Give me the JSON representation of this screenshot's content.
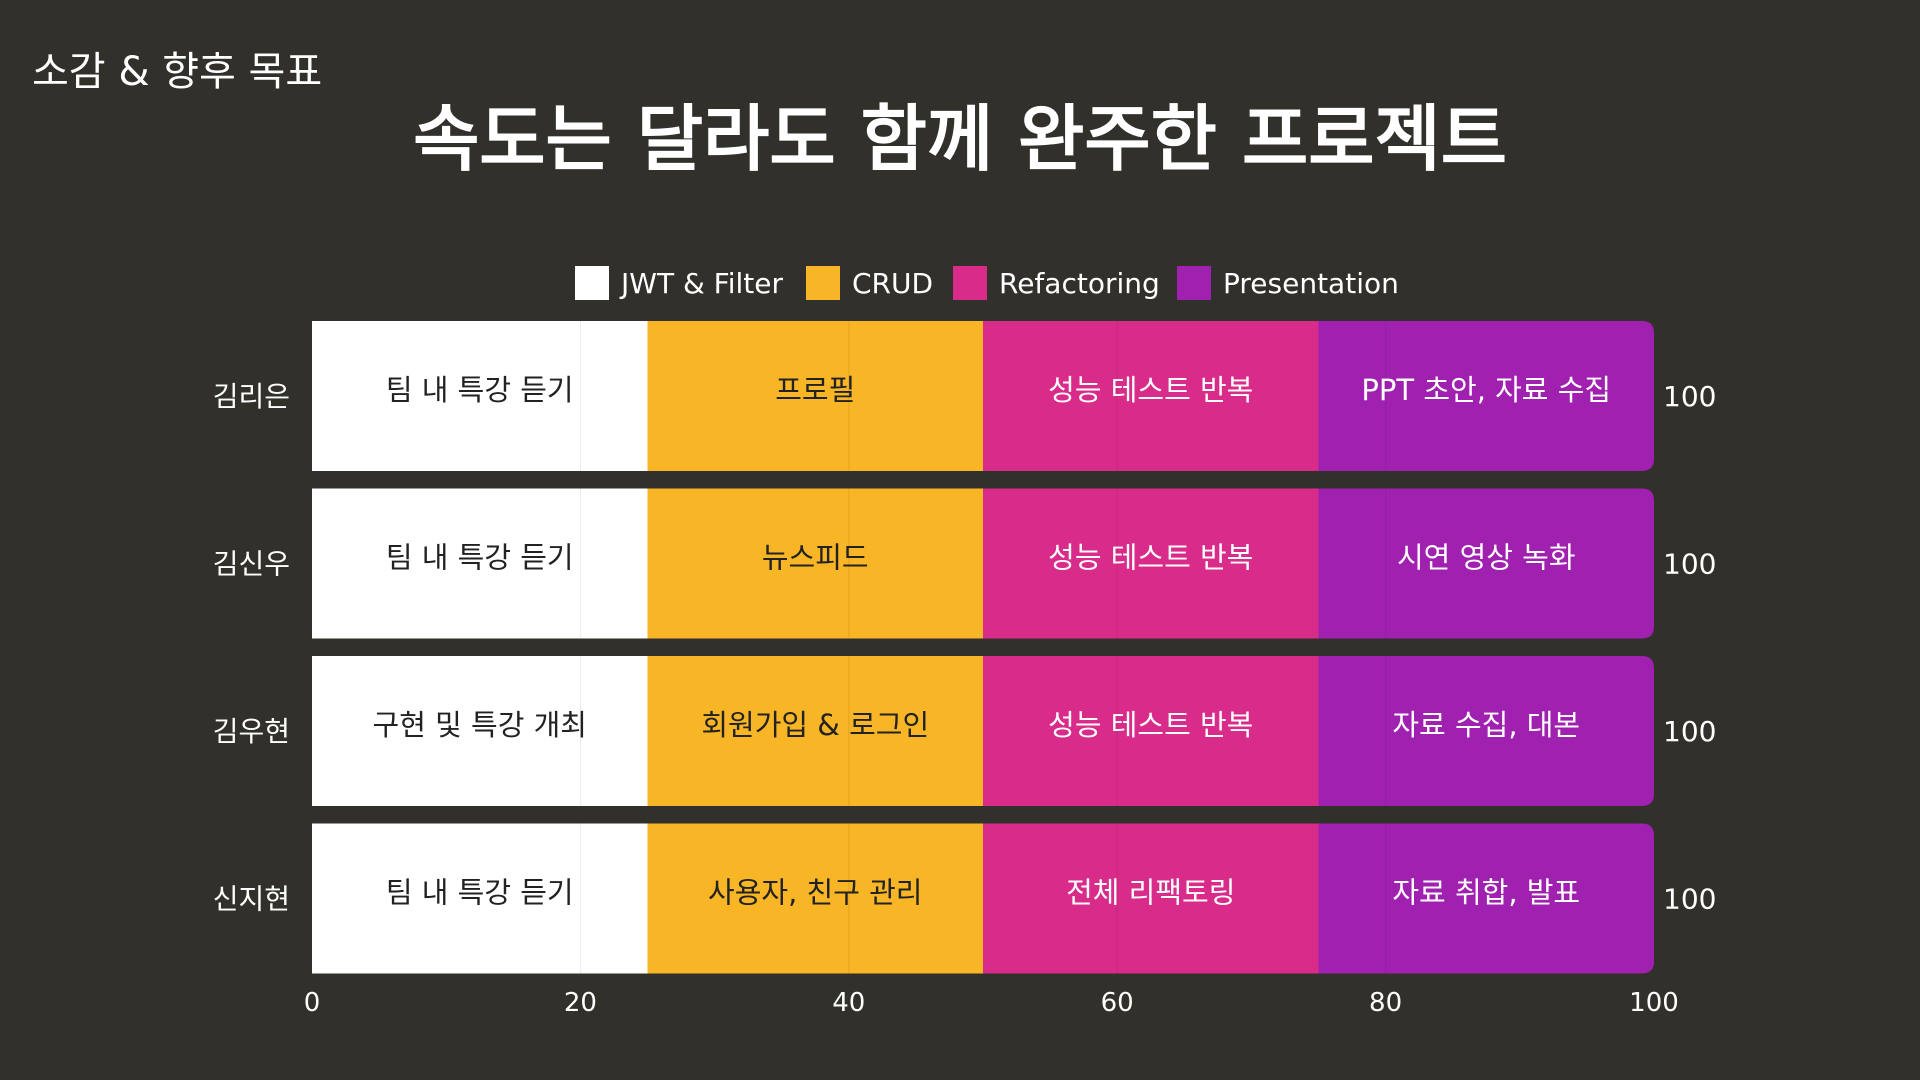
{
  "header": {
    "label": "소감 & 향후 목표",
    "title": "속도는 달라도 함께 완주한 프로젝트"
  },
  "chart_data": {
    "type": "bar",
    "orientation": "horizontal",
    "stacked": true,
    "categories": [
      "김리은",
      "김신우",
      "김우현",
      "신지현"
    ],
    "series": [
      {
        "name": "JWT & Filter",
        "color": "#ffffff",
        "text_color": "#222222",
        "values": [
          25,
          25,
          25,
          25
        ],
        "labels": [
          "팀 내 특강 듣기",
          "팀 내 특강 듣기",
          "구현 및 특강 개최",
          "팀 내 특강 듣기"
        ]
      },
      {
        "name": "CRUD",
        "color": "#f8b526",
        "text_color": "#222222",
        "values": [
          25,
          25,
          25,
          25
        ],
        "labels": [
          "프로필",
          "뉴스피드",
          "회원가입 & 로그인",
          "사용자, 친구 관리"
        ]
      },
      {
        "name": "Refactoring",
        "color": "#d92b8a",
        "text_color": "#ffffff",
        "values": [
          25,
          25,
          25,
          25
        ],
        "labels": [
          "성능 테스트 반복",
          "성능 테스트 반복",
          "성능 테스트 반복",
          "전체 리팩토링"
        ]
      },
      {
        "name": "Presentation",
        "color": "#a020b0",
        "text_color": "#ffffff",
        "values": [
          25,
          25,
          25,
          25
        ],
        "labels": [
          "PPT 초안, 자료 수집",
          "시연 영상 녹화",
          "자료 수집, 대본",
          "자료 취합, 발표"
        ]
      }
    ],
    "totals": [
      "100",
      "100",
      "100",
      "100"
    ],
    "xlim": [
      0,
      100
    ],
    "xticks": [
      "0",
      "20",
      "40",
      "60",
      "80",
      "100"
    ],
    "grid": true,
    "legend_position": "top-center"
  }
}
